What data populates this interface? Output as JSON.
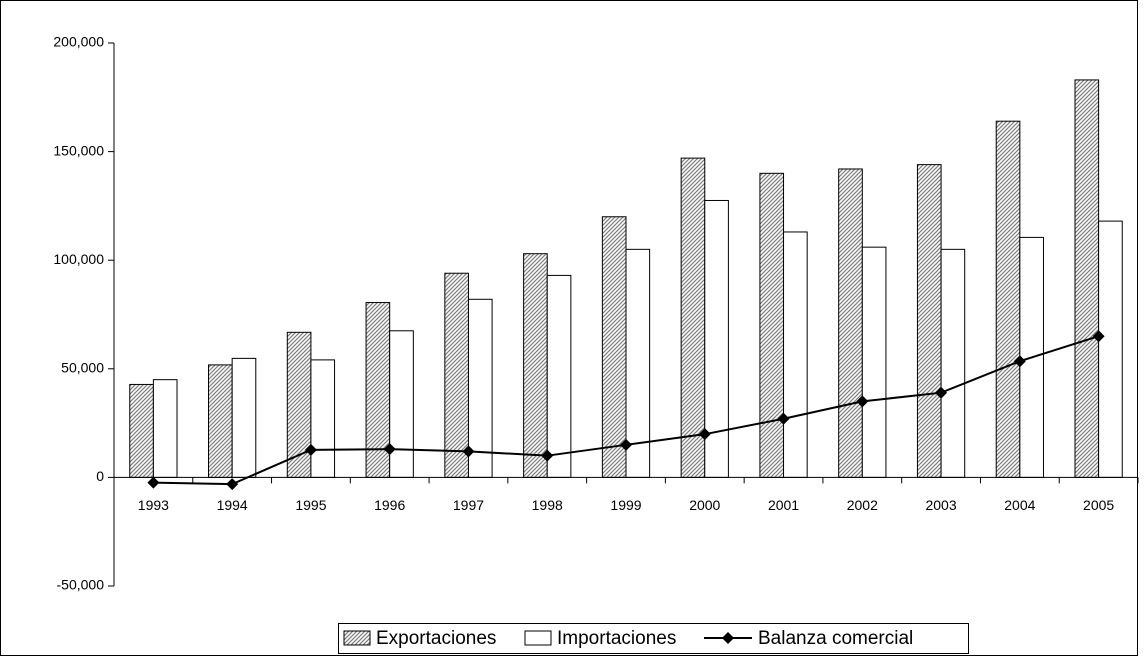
{
  "chart_data": {
    "type": "bar",
    "categories": [
      "1993",
      "1994",
      "1995",
      "1996",
      "1997",
      "1998",
      "1999",
      "2000",
      "2001",
      "2002",
      "2003",
      "2004",
      "2005"
    ],
    "series": [
      {
        "name": "Exportaciones",
        "type": "bar",
        "color": "#a0a0a0",
        "values": [
          42800,
          51800,
          66800,
          80500,
          94000,
          103000,
          120000,
          147000,
          140000,
          142000,
          144000,
          164000,
          183000
        ]
      },
      {
        "name": "Importaciones",
        "type": "bar",
        "color": "#ffffff",
        "values": [
          45000,
          54800,
          54100,
          67500,
          82000,
          93000,
          105000,
          127500,
          113000,
          106000,
          105000,
          110500,
          118000
        ]
      },
      {
        "name": "Balanza comercial",
        "type": "line",
        "color": "#000000",
        "values": [
          -2400,
          -3100,
          12700,
          13000,
          12000,
          10000,
          15000,
          19900,
          27000,
          35000,
          39000,
          53500,
          65000
        ]
      }
    ],
    "ylim": [
      -50000,
      200000
    ],
    "yticks": [
      {
        "value": -50000,
        "label": "-50,000"
      },
      0,
      {
        "value": 50000,
        "label": "50,000"
      },
      {
        "value": 100000,
        "label": "100,000"
      },
      {
        "value": 150000,
        "label": "150,000"
      },
      {
        "value": 200000,
        "label": "200,000"
      }
    ],
    "legend": "bottom",
    "grid": false
  }
}
